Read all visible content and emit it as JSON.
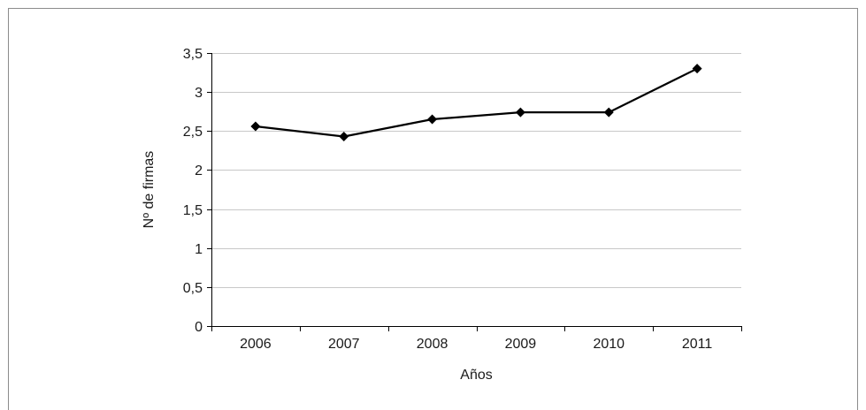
{
  "chart_data": {
    "type": "line",
    "title": "",
    "xlabel": "Años",
    "ylabel": "Nº de firmas",
    "categories": [
      "2006",
      "2007",
      "2008",
      "2009",
      "2010",
      "2011"
    ],
    "series": [
      {
        "values": [
          2.56,
          2.43,
          2.65,
          2.74,
          2.74,
          3.3
        ],
        "marker": "diamond",
        "color": "#000000"
      }
    ],
    "ylim": [
      0,
      3.5
    ],
    "yticks": [
      0,
      0.5,
      1,
      1.5,
      2,
      2.5,
      3,
      3.5
    ],
    "ytick_labels": [
      "0",
      "0,5",
      "1",
      "1,5",
      "2",
      "2,5",
      "3",
      "3,5"
    ],
    "grid": true,
    "gridline_color": "#c8c8c8",
    "legend": "none"
  }
}
